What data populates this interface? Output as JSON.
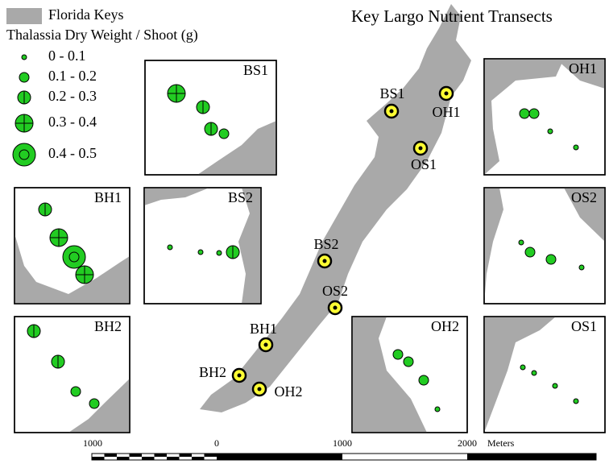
{
  "title": "Key Largo Nutrient Transects",
  "legend": {
    "land": "Florida Keys",
    "title": "Thalassia Dry Weight / Shoot (g)",
    "classes": [
      "0 - 0.1",
      "0.1 - 0.2",
      "0.2 - 0.3",
      "0.3 - 0.4",
      "0.4 - 0.5"
    ]
  },
  "sites": [
    "BS1",
    "OH1",
    "OS1",
    "BS2",
    "OS2",
    "BH1",
    "BH2",
    "OH2"
  ],
  "scale": {
    "labels": [
      "1000",
      "0",
      "1000",
      "2000"
    ],
    "unit": "Meters"
  }
}
